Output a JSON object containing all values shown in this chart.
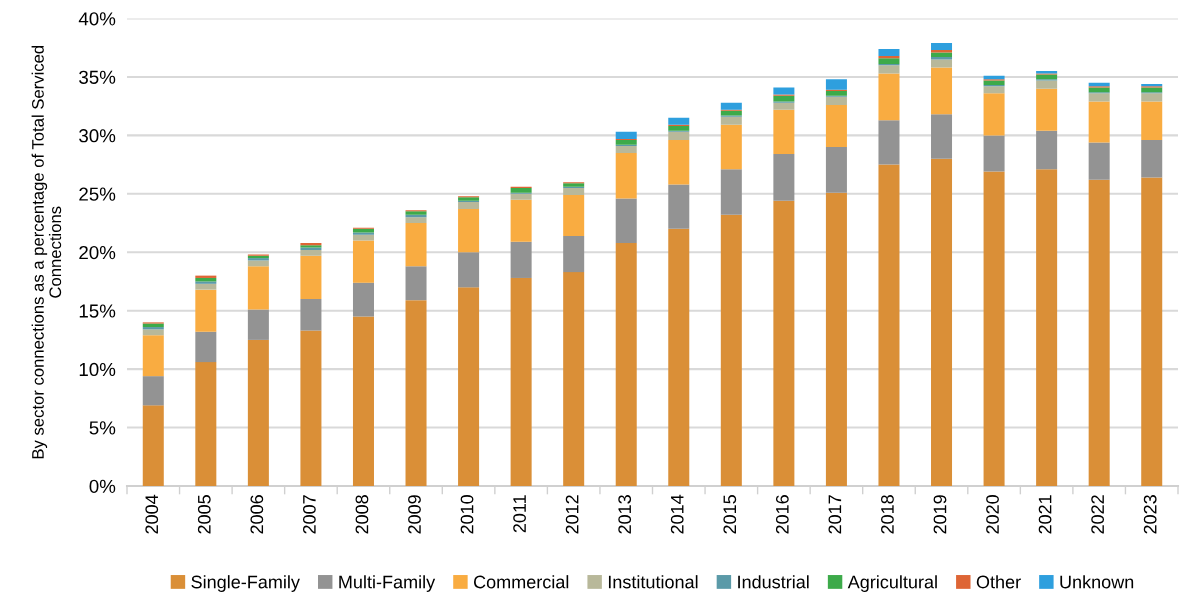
{
  "chart_data": {
    "type": "bar",
    "stacked": true,
    "ylabel": "By sector connections as a percentage of Total Serviced\nConnections",
    "categories": [
      "2004",
      "2005",
      "2006",
      "2007",
      "2008",
      "2009",
      "2010",
      "2011",
      "2012",
      "2013",
      "2014",
      "2015",
      "2016",
      "2017",
      "2018",
      "2019",
      "2020",
      "2021",
      "2022",
      "2023"
    ],
    "series": [
      {
        "name": "Single-Family",
        "color": "#da8f37",
        "values": [
          6.9,
          10.6,
          12.5,
          13.3,
          14.5,
          15.9,
          17.0,
          17.8,
          18.3,
          20.8,
          22.0,
          23.2,
          24.4,
          25.1,
          27.5,
          28.0,
          26.9,
          27.1,
          26.2,
          26.4
        ]
      },
      {
        "name": "Multi-Family",
        "color": "#939393",
        "values": [
          2.5,
          2.6,
          2.6,
          2.7,
          2.9,
          2.9,
          3.0,
          3.1,
          3.1,
          3.8,
          3.8,
          3.9,
          4.0,
          3.9,
          3.8,
          3.8,
          3.1,
          3.3,
          3.2,
          3.2
        ]
      },
      {
        "name": "Commercial",
        "color": "#f9ac41",
        "values": [
          3.5,
          3.6,
          3.7,
          3.7,
          3.6,
          3.7,
          3.7,
          3.6,
          3.5,
          3.9,
          3.8,
          3.8,
          3.8,
          3.6,
          4.0,
          4.0,
          3.6,
          3.6,
          3.5,
          3.3
        ]
      },
      {
        "name": "Institutional",
        "color": "#b8b89a",
        "values": [
          0.5,
          0.5,
          0.5,
          0.5,
          0.5,
          0.5,
          0.6,
          0.5,
          0.6,
          0.6,
          0.7,
          0.7,
          0.6,
          0.7,
          0.7,
          0.7,
          0.6,
          0.7,
          0.7,
          0.7
        ]
      },
      {
        "name": "Industrial",
        "color": "#5b9aa8",
        "values": [
          0.2,
          0.2,
          0.2,
          0.2,
          0.2,
          0.2,
          0.1,
          0.1,
          0.1,
          0.1,
          0.1,
          0.1,
          0.1,
          0.1,
          0.1,
          0.2,
          0.1,
          0.1,
          0.1,
          0.1
        ]
      },
      {
        "name": "Agricultural",
        "color": "#3daa4a",
        "values": [
          0.3,
          0.3,
          0.2,
          0.2,
          0.3,
          0.3,
          0.3,
          0.4,
          0.3,
          0.4,
          0.4,
          0.4,
          0.5,
          0.4,
          0.5,
          0.4,
          0.4,
          0.4,
          0.4,
          0.4
        ]
      },
      {
        "name": "Other",
        "color": "#de6535",
        "values": [
          0.1,
          0.2,
          0.1,
          0.2,
          0.1,
          0.1,
          0.1,
          0.1,
          0.1,
          0.1,
          0.1,
          0.1,
          0.1,
          0.1,
          0.2,
          0.2,
          0.1,
          0.1,
          0.1,
          0.1
        ]
      },
      {
        "name": "Unknown",
        "color": "#2e9fde",
        "values": [
          null,
          null,
          null,
          null,
          null,
          null,
          null,
          null,
          null,
          0.6,
          0.6,
          0.6,
          0.6,
          0.9,
          0.6,
          0.6,
          0.3,
          0.2,
          0.3,
          0.2
        ]
      }
    ],
    "ylim": [
      0,
      40
    ],
    "yticks": [
      {
        "value": 0,
        "label": "0%"
      },
      {
        "value": 5,
        "label": "5%"
      },
      {
        "value": 10,
        "label": "10%"
      },
      {
        "value": 15,
        "label": "15%"
      },
      {
        "value": 20,
        "label": "20%"
      },
      {
        "value": 25,
        "label": "25%"
      },
      {
        "value": 30,
        "label": "30%"
      },
      {
        "value": 35,
        "label": "35%"
      },
      {
        "value": 40,
        "label": "40%"
      }
    ],
    "grid": "y",
    "legend": "bottom"
  }
}
